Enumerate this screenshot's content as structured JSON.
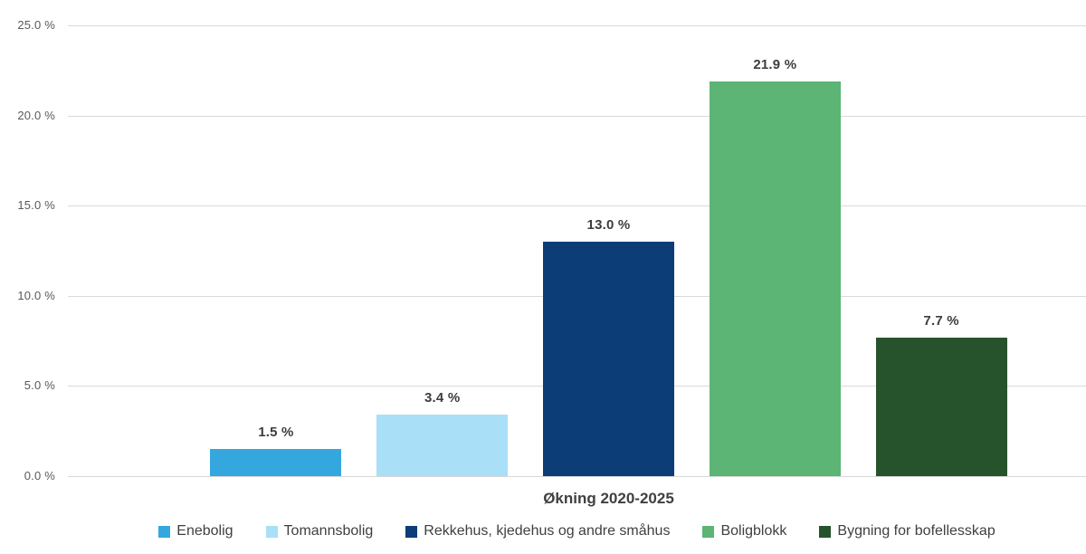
{
  "chart_data": {
    "type": "bar",
    "title": "",
    "xlabel": "Økning 2020-2025",
    "ylabel": "",
    "categories": [
      "Enebolig",
      "Tomannsbolig",
      "Rekkehus, kjedehus og andre småhus",
      "Boligblokk",
      "Bygning for bofellesskap"
    ],
    "values": [
      1.5,
      3.4,
      13.0,
      21.9,
      7.7
    ],
    "data_labels": [
      "1.5 %",
      "3.4 %",
      "13.0 %",
      "21.9 %",
      "7.7 %"
    ],
    "bar_colors": [
      "#35a7df",
      "#a9dff7",
      "#0c3d77",
      "#5cb475",
      "#27532c"
    ],
    "ylim": [
      0,
      25
    ],
    "ytick_step": 5,
    "ytick_labels": [
      "0.0 %",
      "5.0 %",
      "10.0 %",
      "15.0 %",
      "20.0 %",
      "25.0 %"
    ],
    "grid": true,
    "legend_position": "bottom",
    "legend": [
      {
        "label": "Enebolig",
        "color": "#35a7df"
      },
      {
        "label": "Tomannsbolig",
        "color": "#a9dff7"
      },
      {
        "label": "Rekkehus, kjedehus og andre småhus",
        "color": "#0c3d77"
      },
      {
        "label": "Boligblokk",
        "color": "#5cb475"
      },
      {
        "label": "Bygning for bofellesskap",
        "color": "#27532c"
      }
    ],
    "style_colors": {
      "background": "#ffffff",
      "gridline": "#d9d9d9",
      "tick_label": "#595959",
      "data_label": "#3d3d3d",
      "axis_title": "#404040",
      "legend_text": "#404040"
    }
  }
}
